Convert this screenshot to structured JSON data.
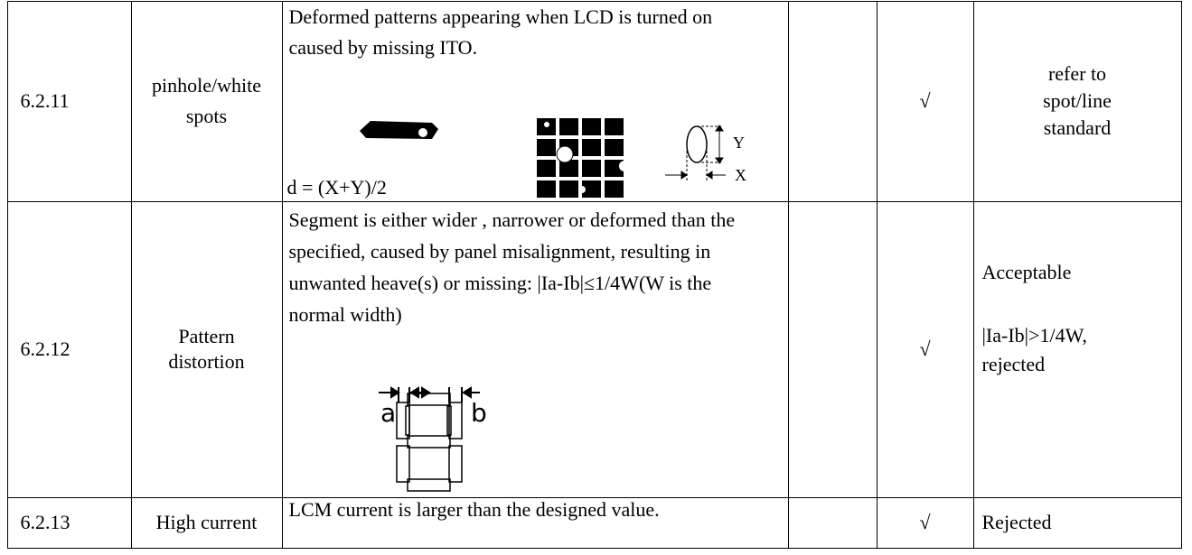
{
  "table": {
    "rows": [
      {
        "id": "6.2.11",
        "item": "pinhole/white spots",
        "description": "Deformed patterns appearing when LCD is turned on caused by missing ITO.",
        "formula": "d = (X+Y)/2",
        "figure_labels": [
          "Y",
          "X"
        ],
        "check": "√",
        "criteria": [
          "refer to spot/line standard"
        ]
      },
      {
        "id": "6.2.12",
        "item": "Pattern distortion",
        "description": "Segment is either wider , narrower or deformed than the specified, caused by panel misalignment, resulting in unwanted heave(s) or missing: |Ia-Ib|≤1/4W(W is the normal width)",
        "figure_labels": [
          "a",
          "b"
        ],
        "check": "√",
        "criteria": [
          "Acceptable",
          "|Ia-Ib|>1/4W, rejected"
        ]
      },
      {
        "id": "6.2.13",
        "item": "High current",
        "description": "LCM current is larger than the designed value.",
        "check": "√",
        "criteria": [
          "Rejected"
        ]
      }
    ]
  }
}
